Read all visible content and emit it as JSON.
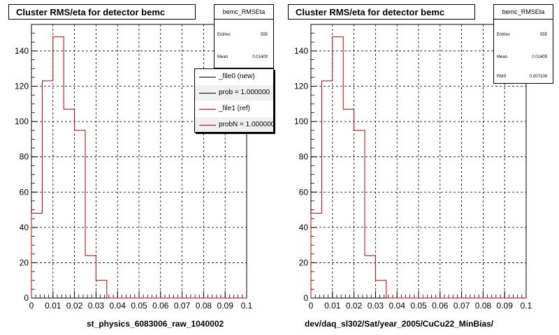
{
  "panels": [
    {
      "title": "Cluster RMS/eta for detector bemc",
      "xlabel": "st_physics_6083006_raw_1040002",
      "stats": {
        "name": "bemc_RMSEta",
        "rows": [
          {
            "label": "Entries",
            "value": "555"
          },
          {
            "label": "Mean",
            "value": "0.01409"
          }
        ]
      },
      "legend": [
        {
          "label": "_file0 (new)",
          "color": "#000000",
          "shaded": false
        },
        {
          "label": "prob = 1.000000",
          "color": "#000000",
          "shaded": true
        },
        {
          "label": "_file1 (ref)",
          "color": "#c00000",
          "shaded": false
        },
        {
          "label": "probN = 1.000000",
          "color": "#c00000",
          "shaded": true
        }
      ]
    },
    {
      "title": "Cluster RMS/eta for detector bemc",
      "xlabel": "dev/daq_sl302/Sat/year_2005/CuCu22_MinBias/",
      "stats": {
        "name": "bemc_RMSEta",
        "rows": [
          {
            "label": "Entries",
            "value": "555"
          },
          {
            "label": "Mean",
            "value": "0.01409"
          },
          {
            "label": "RMS",
            "value": "0.007109"
          }
        ]
      },
      "legend": []
    }
  ],
  "chart_data": [
    {
      "type": "bar",
      "title": "Cluster RMS/eta for detector bemc",
      "xlabel": "st_physics_6083006_raw_1040002",
      "ylabel": "",
      "xlim": [
        0,
        0.1
      ],
      "ylim": [
        0,
        155
      ],
      "xticks": [
        "0",
        "0.01",
        "0.02",
        "0.03",
        "0.04",
        "0.05",
        "0.06",
        "0.07",
        "0.08",
        "0.09",
        "0.1"
      ],
      "yticks": [
        "0",
        "20",
        "40",
        "60",
        "80",
        "100",
        "120",
        "140"
      ],
      "grid": true,
      "bin_width": 0.005,
      "bin_edges_start": 0,
      "series": [
        {
          "name": "_file1 (ref)",
          "color": "#c00000",
          "values": [
            48,
            123,
            148,
            107,
            95,
            24,
            10,
            0,
            0,
            0,
            0,
            0,
            0,
            0,
            0,
            0,
            0,
            0,
            0,
            0
          ]
        }
      ]
    },
    {
      "type": "bar",
      "title": "Cluster RMS/eta for detector bemc",
      "xlabel": "dev/daq_sl302/Sat/year_2005/CuCu22_MinBias/",
      "ylabel": "",
      "xlim": [
        0,
        0.1
      ],
      "ylim": [
        0,
        155
      ],
      "xticks": [
        "0",
        "0.01",
        "0.02",
        "0.03",
        "0.04",
        "0.05",
        "0.06",
        "0.07",
        "0.08",
        "0.09",
        "0.1"
      ],
      "yticks": [
        "0",
        "20",
        "40",
        "60",
        "80",
        "100",
        "120",
        "140"
      ],
      "grid": true,
      "bin_width": 0.005,
      "bin_edges_start": 0,
      "series": [
        {
          "color": "#c00000",
          "values": [
            48,
            123,
            148,
            107,
            95,
            24,
            10,
            0,
            0,
            0,
            0,
            0,
            0,
            0,
            0,
            0,
            0,
            0,
            0,
            0
          ]
        }
      ]
    }
  ]
}
